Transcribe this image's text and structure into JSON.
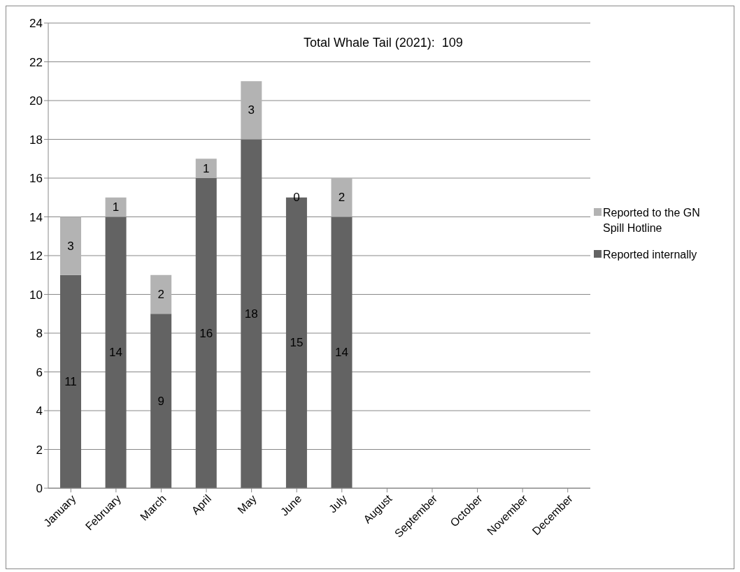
{
  "chart_data": {
    "type": "bar",
    "stacked": true,
    "categories": [
      "January",
      "February",
      "March",
      "April",
      "May",
      "June",
      "July",
      "August",
      "September",
      "October",
      "November",
      "December"
    ],
    "series": [
      {
        "name": "Reported internally",
        "color": "#636363",
        "values": [
          11,
          14,
          9,
          16,
          18,
          15,
          14,
          null,
          null,
          null,
          null,
          null
        ]
      },
      {
        "name": "Reported to the GN Spill Hotline",
        "color": "#b3b3b3",
        "values": [
          3,
          1,
          2,
          1,
          3,
          0,
          2,
          null,
          null,
          null,
          null,
          null
        ]
      }
    ],
    "ylim": [
      0,
      24
    ],
    "yticks": [
      0,
      2,
      4,
      6,
      8,
      10,
      12,
      14,
      16,
      18,
      20,
      22,
      24
    ],
    "grid": "y",
    "legend": "right",
    "data_labels": true,
    "annotations": [
      "Total Whale Tail (2021):  109"
    ]
  }
}
